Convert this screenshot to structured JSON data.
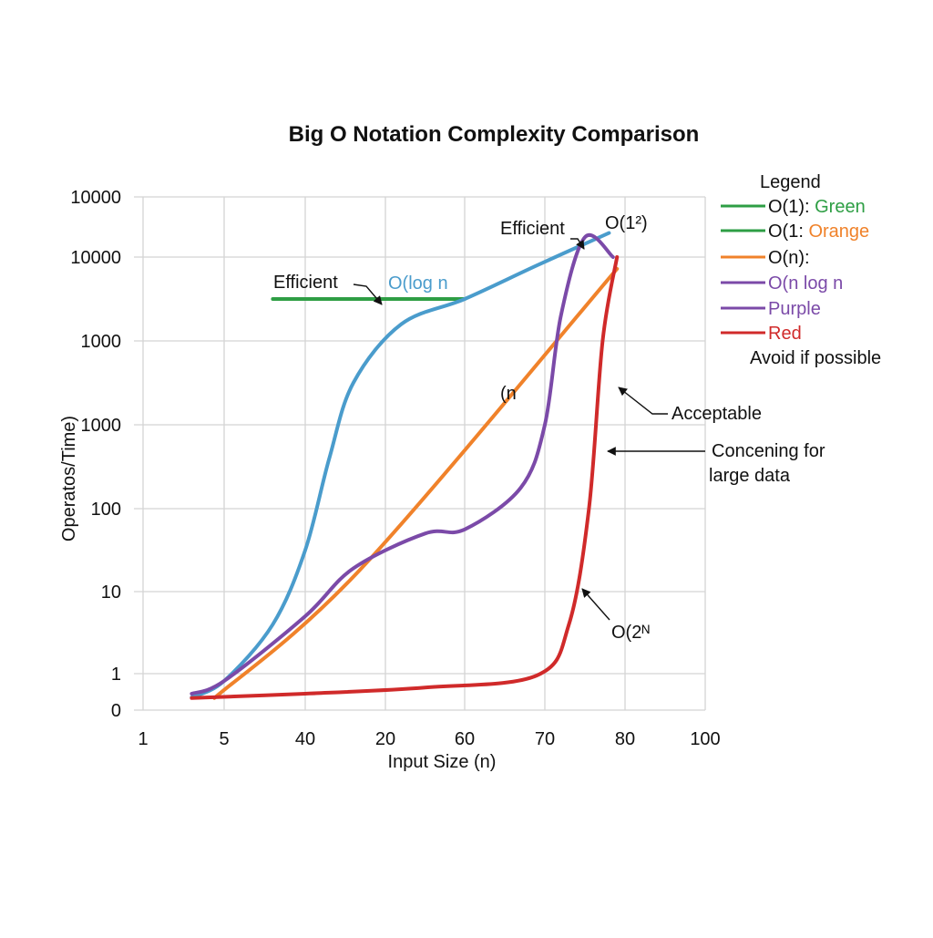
{
  "chart_data": {
    "type": "line",
    "title": "Big O Notation Complexity Comparison",
    "xlabel": "Input Size (n)",
    "ylabel": "Operatos/Time)",
    "x_tick_labels": [
      "1",
      "5",
      "40",
      "20",
      "60",
      "70",
      "80",
      "100"
    ],
    "y_tick_labels": [
      "10000",
      "10000",
      "1000",
      "1000",
      "100",
      "10",
      "1",
      "0"
    ],
    "grid": true,
    "legend_position": "right",
    "series": [
      {
        "name": "O(1): Green",
        "color": "#2e9e44",
        "points": [
          [
            1.6,
            5.5
          ],
          [
            4.0,
            5.5
          ]
        ]
      },
      {
        "name": "O(log n",
        "color": "#4a9ccc",
        "points": [
          [
            0.6,
            0.35
          ],
          [
            1.0,
            0.8
          ],
          [
            1.6,
            1.6
          ],
          [
            2.0,
            2.5
          ],
          [
            2.3,
            3.6
          ],
          [
            2.6,
            4.5
          ],
          [
            3.2,
            5.2
          ],
          [
            4.0,
            5.5
          ],
          [
            4.9,
            5.9
          ],
          [
            5.8,
            6.4
          ]
        ]
      },
      {
        "name": "O(n):",
        "color": "#f0822a",
        "points": [
          [
            0.88,
            0.33
          ],
          [
            2.7,
            2.28
          ],
          [
            5.9,
            5.86
          ]
        ]
      },
      {
        "name": "O(n log n",
        "color": "#7b4aa8",
        "points": [
          [
            0.6,
            0.45
          ],
          [
            1.0,
            0.8
          ],
          [
            2.0,
            1.7
          ],
          [
            2.6,
            2.28
          ],
          [
            3.5,
            2.7
          ],
          [
            4.0,
            2.75
          ],
          [
            4.7,
            3.25
          ],
          [
            5.0,
            4.0
          ],
          [
            5.2,
            5.3
          ],
          [
            5.5,
            6.33
          ],
          [
            5.85,
            6.0
          ]
        ]
      },
      {
        "name": "Red",
        "color": "#d02a2a",
        "points": [
          [
            0.6,
            0.33
          ],
          [
            2.0,
            0.45
          ],
          [
            3.5,
            0.62
          ],
          [
            4.9,
            0.95
          ],
          [
            5.3,
            1.6
          ],
          [
            5.55,
            3.0
          ],
          [
            5.72,
            5.0
          ],
          [
            5.9,
            6.0
          ]
        ]
      }
    ]
  },
  "legend": {
    "heading": "Legend",
    "items": [
      {
        "text": "O(1): ",
        "accent": "Green",
        "line_color": "#2e9e44",
        "text_color": "#2e9e44"
      },
      {
        "text": "O(1: ",
        "accent": "Orange",
        "line_color": "#2e9e44",
        "text_color": "#f0822a"
      },
      {
        "text": "O(n):",
        "accent": "",
        "line_color": "#f0822a",
        "text_color": "#111111"
      },
      {
        "text": "O(n log n",
        "accent": "",
        "line_color": "#7b4aa8",
        "text_color": "#7b4aa8"
      },
      {
        "text": "Purple",
        "accent": "",
        "line_color": "#7b4aa8",
        "text_color": "#7b4aa8"
      },
      {
        "text": "Red",
        "accent": "",
        "line_color": "#d02a2a",
        "text_color": "#d02a2a"
      }
    ],
    "note": "Avoid if possible"
  },
  "annotations": {
    "efficient_top": "Efficient",
    "o_one_sq": "O(1²)",
    "efficient_mid": "Efficient",
    "o_log_n": "O(log n",
    "paren_n": "(n",
    "acceptable": "Acceptable",
    "concerning_1": "Concening for",
    "concerning_2": "large data",
    "o_2n": "O(2ᴺ"
  },
  "colors": {
    "green": "#2e9e44",
    "blue": "#4a9ccc",
    "orange": "#f0822a",
    "purple": "#7b4aa8",
    "red": "#d02a2a"
  }
}
